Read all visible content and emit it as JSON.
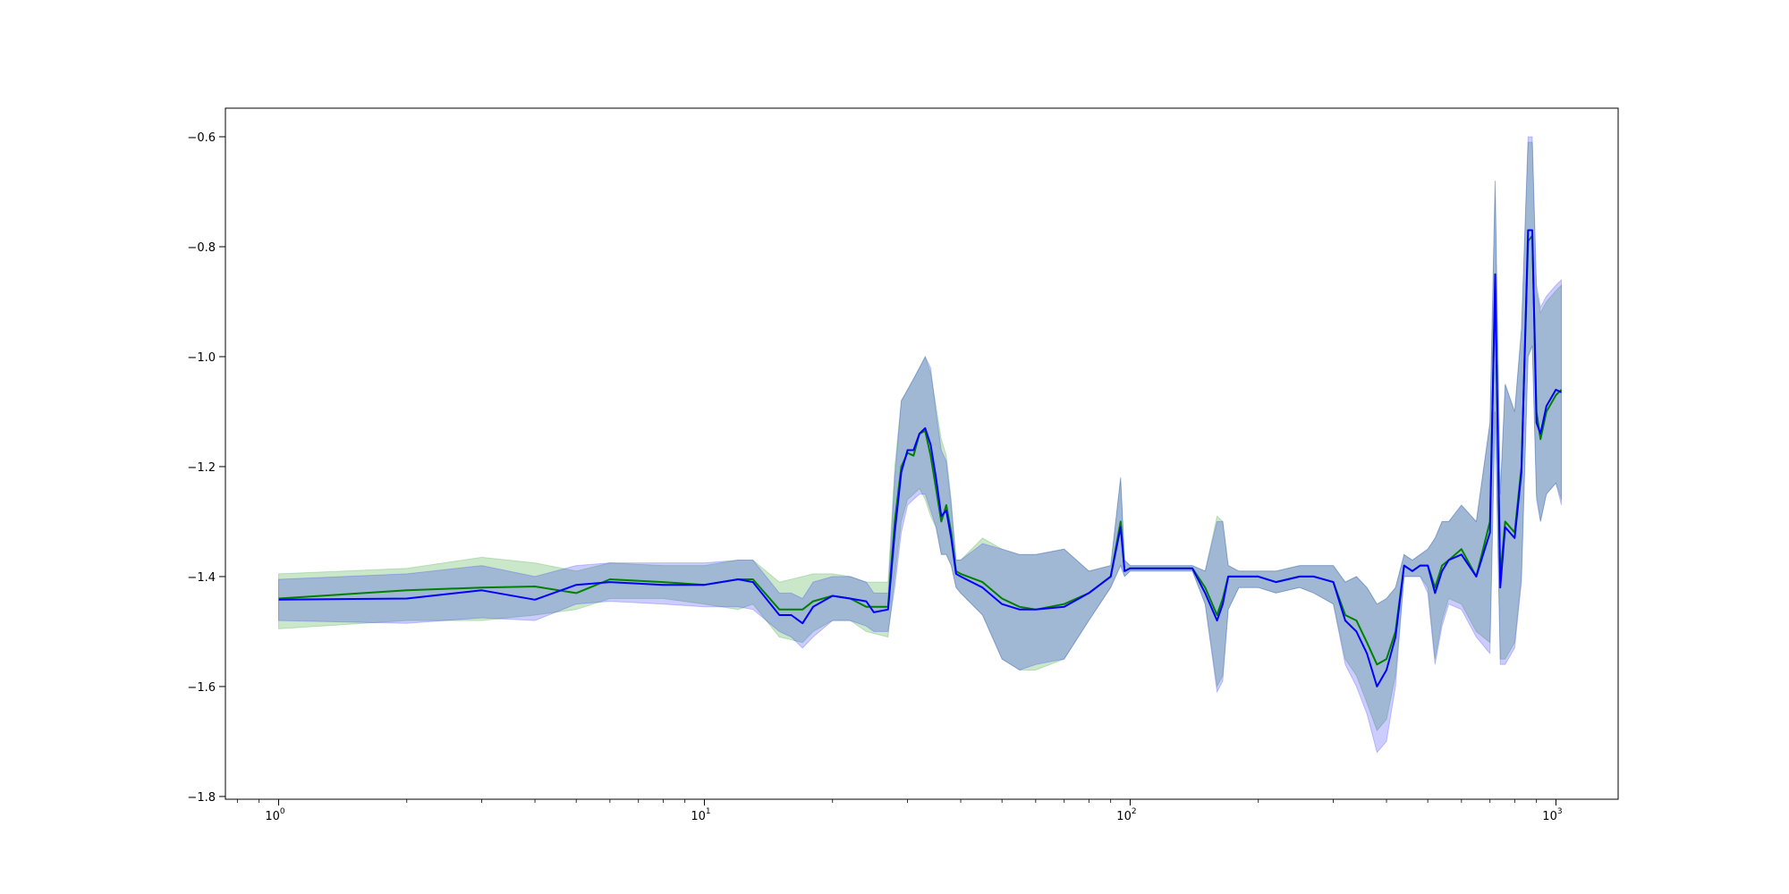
{
  "chart_data": {
    "type": "line",
    "title": "",
    "xlabel": "",
    "ylabel": "",
    "xscale": "log",
    "xlim": [
      0.75,
      1400
    ],
    "ylim": [
      -1.805,
      -0.548
    ],
    "grid": false,
    "legend": "none",
    "x_ticks": [
      {
        "base": "10",
        "exp": "0",
        "value": 1
      },
      {
        "base": "10",
        "exp": "1",
        "value": 10
      },
      {
        "base": "10",
        "exp": "2",
        "value": 100
      },
      {
        "base": "10",
        "exp": "3",
        "value": 1000
      }
    ],
    "y_ticks": [
      {
        "label": "−1.8",
        "value": -1.8
      },
      {
        "label": "−1.6",
        "value": -1.6
      },
      {
        "label": "−1.4",
        "value": -1.4
      },
      {
        "label": "−1.2",
        "value": -1.2
      },
      {
        "label": "−1.0",
        "value": -1.0
      },
      {
        "label": "−0.8",
        "value": -0.8
      },
      {
        "label": "−0.6",
        "value": -0.6
      }
    ],
    "series": [
      {
        "color": "#008000",
        "band_color": "#2ca02c",
        "band_opacity": 0.25,
        "x": [
          1,
          2,
          3,
          4,
          5,
          6,
          8,
          10,
          12,
          13,
          15,
          17,
          18,
          20,
          22,
          24,
          27,
          28,
          29,
          30,
          31,
          32,
          33,
          34,
          35,
          36,
          37,
          38,
          39,
          40,
          45,
          50,
          55,
          60,
          70,
          80,
          90,
          95,
          97,
          100,
          120,
          140,
          150,
          160,
          165,
          170,
          180,
          200,
          220,
          250,
          270,
          300,
          320,
          340,
          360,
          380,
          400,
          420,
          440,
          460,
          480,
          500,
          520,
          540,
          560,
          600,
          650,
          700,
          720,
          740,
          760,
          800,
          830,
          860,
          880,
          900,
          920,
          950,
          1000,
          1030
        ],
        "y": [
          -1.44,
          -1.425,
          -1.42,
          -1.418,
          -1.43,
          -1.405,
          -1.41,
          -1.415,
          -1.405,
          -1.405,
          -1.46,
          -1.46,
          -1.445,
          -1.435,
          -1.44,
          -1.455,
          -1.455,
          -1.3,
          -1.2,
          -1.175,
          -1.18,
          -1.14,
          -1.135,
          -1.18,
          -1.24,
          -1.3,
          -1.27,
          -1.32,
          -1.39,
          -1.395,
          -1.41,
          -1.44,
          -1.455,
          -1.46,
          -1.45,
          -1.43,
          -1.4,
          -1.3,
          -1.39,
          -1.385,
          -1.385,
          -1.385,
          -1.42,
          -1.47,
          -1.44,
          -1.4,
          -1.4,
          -1.4,
          -1.41,
          -1.4,
          -1.4,
          -1.41,
          -1.47,
          -1.48,
          -1.52,
          -1.56,
          -1.55,
          -1.5,
          -1.38,
          -1.39,
          -1.38,
          -1.38,
          -1.42,
          -1.38,
          -1.37,
          -1.35,
          -1.4,
          -1.3,
          -0.87,
          -1.4,
          -1.3,
          -1.32,
          -1.2,
          -0.79,
          -0.78,
          -1.1,
          -1.15,
          -1.1,
          -1.07,
          -1.06
        ],
        "lower": [
          -1.495,
          -1.48,
          -1.48,
          -1.47,
          -1.46,
          -1.44,
          -1.44,
          -1.45,
          -1.46,
          -1.45,
          -1.51,
          -1.52,
          -1.5,
          -1.48,
          -1.48,
          -1.5,
          -1.51,
          -1.4,
          -1.3,
          -1.26,
          -1.25,
          -1.24,
          -1.26,
          -1.29,
          -1.31,
          -1.36,
          -1.36,
          -1.38,
          -1.42,
          -1.43,
          -1.47,
          -1.55,
          -1.57,
          -1.57,
          -1.55,
          -1.48,
          -1.42,
          -1.38,
          -1.4,
          -1.39,
          -1.39,
          -1.39,
          -1.45,
          -1.6,
          -1.58,
          -1.46,
          -1.42,
          -1.42,
          -1.43,
          -1.42,
          -1.43,
          -1.45,
          -1.55,
          -1.58,
          -1.63,
          -1.68,
          -1.66,
          -1.58,
          -1.4,
          -1.4,
          -1.4,
          -1.42,
          -1.55,
          -1.48,
          -1.44,
          -1.45,
          -1.5,
          -1.52,
          -1.1,
          -1.55,
          -1.55,
          -1.52,
          -1.4,
          -1.0,
          -0.98,
          -1.25,
          -1.3,
          -1.25,
          -1.23,
          -1.26
        ],
        "upper": [
          -1.395,
          -1.385,
          -1.365,
          -1.375,
          -1.39,
          -1.375,
          -1.38,
          -1.38,
          -1.37,
          -1.37,
          -1.41,
          -1.4,
          -1.395,
          -1.395,
          -1.4,
          -1.41,
          -1.41,
          -1.2,
          -1.08,
          -1.06,
          -1.04,
          -1.02,
          -1.0,
          -1.03,
          -1.09,
          -1.15,
          -1.18,
          -1.26,
          -1.37,
          -1.37,
          -1.33,
          -1.35,
          -1.36,
          -1.36,
          -1.35,
          -1.39,
          -1.38,
          -1.22,
          -1.37,
          -1.38,
          -1.38,
          -1.38,
          -1.39,
          -1.29,
          -1.3,
          -1.38,
          -1.39,
          -1.39,
          -1.39,
          -1.38,
          -1.38,
          -1.38,
          -1.41,
          -1.4,
          -1.42,
          -1.45,
          -1.44,
          -1.42,
          -1.36,
          -1.37,
          -1.36,
          -1.35,
          -1.33,
          -1.3,
          -1.3,
          -1.27,
          -1.3,
          -1.12,
          -0.68,
          -1.25,
          -1.05,
          -1.1,
          -0.95,
          -0.61,
          -0.61,
          -0.88,
          -0.92,
          -0.9,
          -0.88,
          -0.87
        ]
      },
      {
        "color": "#0000ff",
        "band_color": "#0000ff",
        "band_opacity": 0.2,
        "x": [
          1,
          2,
          3,
          4,
          5,
          6,
          8,
          10,
          12,
          13,
          15,
          16,
          17,
          18,
          20,
          22,
          24,
          25,
          27,
          28,
          29,
          30,
          31,
          32,
          33,
          34,
          35,
          36,
          37,
          38,
          39,
          40,
          45,
          50,
          55,
          60,
          70,
          80,
          90,
          95,
          97,
          100,
          120,
          140,
          150,
          160,
          165,
          170,
          180,
          200,
          220,
          250,
          270,
          300,
          320,
          340,
          360,
          380,
          400,
          420,
          440,
          460,
          480,
          500,
          520,
          540,
          560,
          600,
          650,
          700,
          720,
          740,
          760,
          800,
          830,
          860,
          880,
          900,
          920,
          950,
          1000,
          1030
        ],
        "y": [
          -1.442,
          -1.44,
          -1.425,
          -1.442,
          -1.415,
          -1.41,
          -1.415,
          -1.415,
          -1.405,
          -1.41,
          -1.47,
          -1.47,
          -1.485,
          -1.455,
          -1.435,
          -1.44,
          -1.445,
          -1.465,
          -1.46,
          -1.32,
          -1.21,
          -1.17,
          -1.17,
          -1.14,
          -1.13,
          -1.16,
          -1.22,
          -1.29,
          -1.28,
          -1.33,
          -1.395,
          -1.4,
          -1.42,
          -1.45,
          -1.46,
          -1.46,
          -1.455,
          -1.43,
          -1.4,
          -1.31,
          -1.39,
          -1.385,
          -1.385,
          -1.385,
          -1.43,
          -1.48,
          -1.45,
          -1.4,
          -1.4,
          -1.4,
          -1.41,
          -1.4,
          -1.4,
          -1.41,
          -1.48,
          -1.5,
          -1.54,
          -1.6,
          -1.57,
          -1.51,
          -1.38,
          -1.39,
          -1.38,
          -1.38,
          -1.43,
          -1.39,
          -1.37,
          -1.36,
          -1.4,
          -1.32,
          -0.85,
          -1.42,
          -1.31,
          -1.33,
          -1.21,
          -0.77,
          -0.77,
          -1.12,
          -1.14,
          -1.09,
          -1.06,
          -1.065
        ],
        "lower": [
          -1.48,
          -1.485,
          -1.475,
          -1.48,
          -1.45,
          -1.445,
          -1.45,
          -1.455,
          -1.455,
          -1.46,
          -1.5,
          -1.51,
          -1.53,
          -1.51,
          -1.48,
          -1.48,
          -1.49,
          -1.5,
          -1.5,
          -1.42,
          -1.32,
          -1.27,
          -1.26,
          -1.25,
          -1.25,
          -1.28,
          -1.31,
          -1.36,
          -1.36,
          -1.38,
          -1.42,
          -1.43,
          -1.47,
          -1.55,
          -1.57,
          -1.56,
          -1.55,
          -1.48,
          -1.42,
          -1.38,
          -1.4,
          -1.39,
          -1.39,
          -1.39,
          -1.45,
          -1.61,
          -1.59,
          -1.46,
          -1.42,
          -1.42,
          -1.43,
          -1.42,
          -1.43,
          -1.45,
          -1.56,
          -1.6,
          -1.65,
          -1.72,
          -1.7,
          -1.6,
          -1.4,
          -1.4,
          -1.4,
          -1.43,
          -1.56,
          -1.49,
          -1.45,
          -1.46,
          -1.51,
          -1.54,
          -1.1,
          -1.56,
          -1.56,
          -1.53,
          -1.41,
          -1.0,
          -0.98,
          -1.26,
          -1.3,
          -1.25,
          -1.23,
          -1.27
        ],
        "upper": [
          -1.405,
          -1.395,
          -1.38,
          -1.4,
          -1.38,
          -1.375,
          -1.375,
          -1.375,
          -1.37,
          -1.37,
          -1.43,
          -1.43,
          -1.44,
          -1.41,
          -1.4,
          -1.4,
          -1.41,
          -1.43,
          -1.43,
          -1.22,
          -1.08,
          -1.06,
          -1.04,
          -1.02,
          -1.0,
          -1.02,
          -1.1,
          -1.17,
          -1.19,
          -1.27,
          -1.37,
          -1.37,
          -1.34,
          -1.35,
          -1.36,
          -1.36,
          -1.35,
          -1.39,
          -1.38,
          -1.22,
          -1.37,
          -1.38,
          -1.38,
          -1.38,
          -1.39,
          -1.3,
          -1.3,
          -1.38,
          -1.39,
          -1.39,
          -1.39,
          -1.38,
          -1.38,
          -1.38,
          -1.41,
          -1.4,
          -1.42,
          -1.45,
          -1.44,
          -1.42,
          -1.36,
          -1.37,
          -1.36,
          -1.35,
          -1.33,
          -1.3,
          -1.3,
          -1.27,
          -1.3,
          -1.12,
          -0.68,
          -1.25,
          -1.05,
          -1.1,
          -0.95,
          -0.6,
          -0.6,
          -0.87,
          -0.91,
          -0.89,
          -0.87,
          -0.86
        ]
      }
    ]
  }
}
